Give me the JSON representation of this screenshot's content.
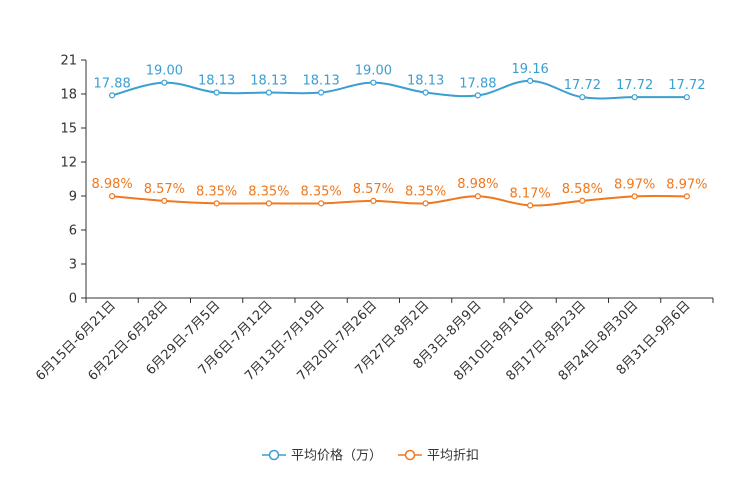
{
  "chart_data": {
    "type": "line",
    "categories": [
      "6月15日-6月21日",
      "6月22日-6月28日",
      "6月29日-7月5日",
      "7月6日-7月12日",
      "7月13日-7月19日",
      "7月20日-7月26日",
      "7月27日-8月2日",
      "8月3日-8月9日",
      "8月10日-8月16日",
      "8月17日-8月23日",
      "8月24日-8月30日",
      "8月31日-9月6日"
    ],
    "series": [
      {
        "name": "平均价格（万）",
        "color": "#3a9fd1",
        "values": [
          17.88,
          19.0,
          18.13,
          18.13,
          18.13,
          19.0,
          18.13,
          17.88,
          19.16,
          17.72,
          17.72,
          17.72
        ],
        "labels": [
          "17.88",
          "19.00",
          "18.13",
          "18.13",
          "18.13",
          "19.00",
          "18.13",
          "17.88",
          "19.16",
          "17.72",
          "17.72",
          "17.72"
        ]
      },
      {
        "name": "平均折扣",
        "color": "#f0781e",
        "values": [
          8.98,
          8.57,
          8.35,
          8.35,
          8.35,
          8.57,
          8.35,
          8.98,
          8.17,
          8.58,
          8.97,
          8.97
        ],
        "labels": [
          "8.98%",
          "8.57%",
          "8.35%",
          "8.35%",
          "8.35%",
          "8.57%",
          "8.35%",
          "8.98%",
          "8.17%",
          "8.58%",
          "8.97%",
          "8.97%"
        ]
      }
    ],
    "yticks": [
      "0",
      "3",
      "6",
      "9",
      "12",
      "15",
      "18",
      "21"
    ],
    "ylim": [
      0,
      21
    ],
    "title": "",
    "xlabel": "",
    "ylabel": "",
    "legend_position": "bottom-center",
    "grid": false
  }
}
